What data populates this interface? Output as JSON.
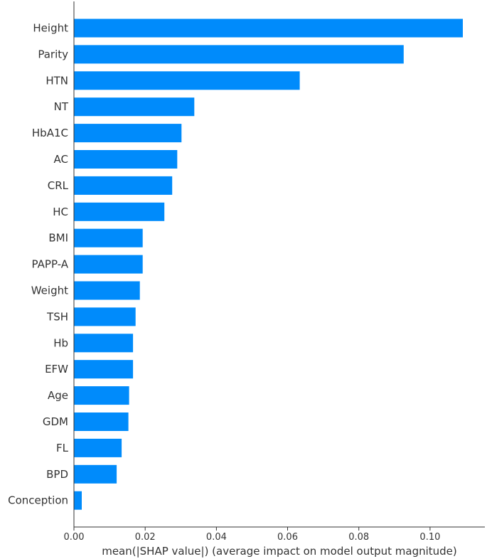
{
  "chart_data": {
    "type": "bar",
    "orientation": "horizontal",
    "xlabel": "mean(|SHAP value|) (average impact on model output magnitude)",
    "xlim": [
      0,
      0.114
    ],
    "xticks": [
      "0.00",
      "0.02",
      "0.04",
      "0.06",
      "0.08",
      "0.10"
    ],
    "bar_color": "#008bfb",
    "categories": [
      "Height",
      "Parity",
      "HTN",
      "NT",
      "HbA1C",
      "AC",
      "CRL",
      "HC",
      "BMI",
      "PAPP-A",
      "Weight",
      "TSH",
      "Hb",
      "EFW",
      "Age",
      "GDM",
      "FL",
      "BPD",
      "Conception"
    ],
    "values": [
      0.1092,
      0.0926,
      0.0634,
      0.0338,
      0.0302,
      0.029,
      0.0276,
      0.0254,
      0.0193,
      0.0193,
      0.0185,
      0.0173,
      0.0166,
      0.0166,
      0.0155,
      0.0153,
      0.0134,
      0.012,
      0.0022
    ]
  }
}
